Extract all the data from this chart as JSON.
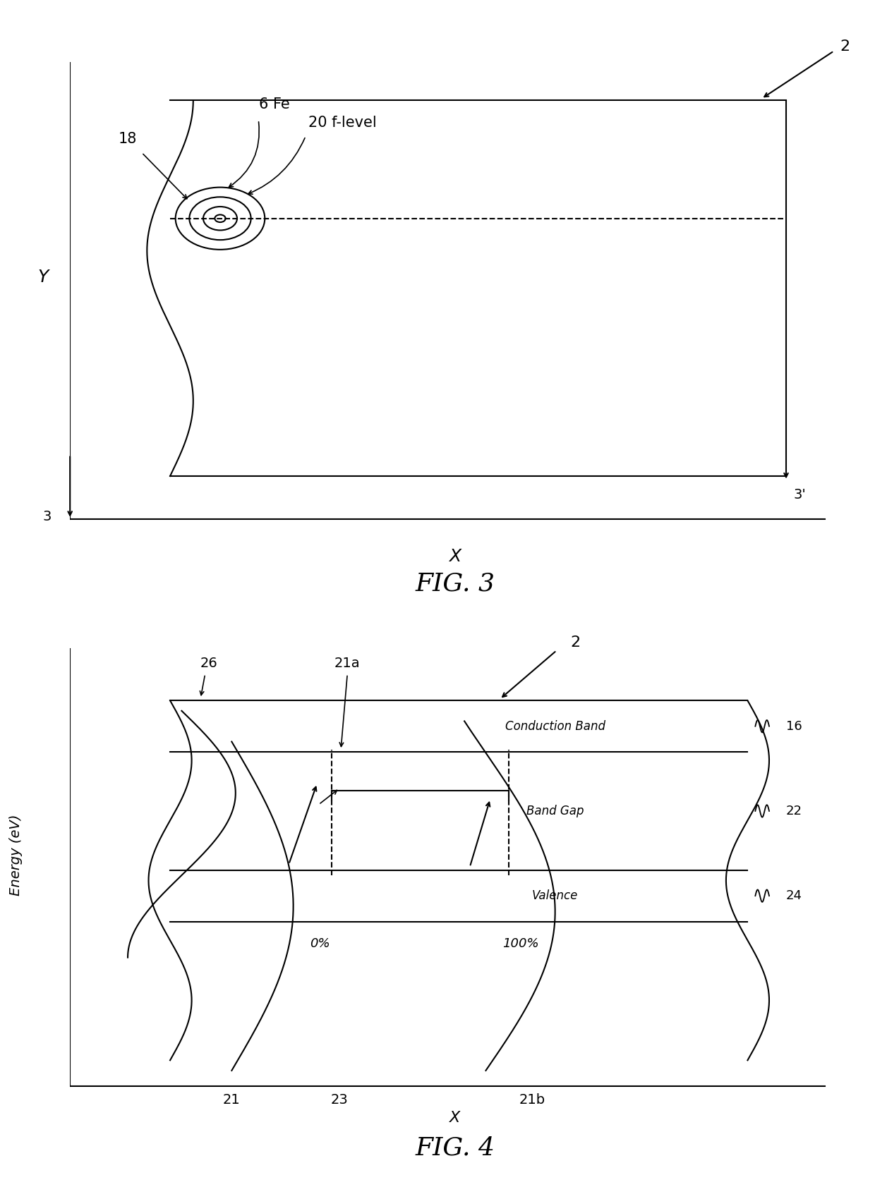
{
  "fig_width": 12.4,
  "fig_height": 17.0,
  "bg_color": "#ffffff",
  "line_color": "#000000",
  "fig3_title": "FIG. 3",
  "fig4_title": "FIG. 4",
  "fig3_labels": {
    "Y": "Y",
    "X": "X",
    "num_2": "2",
    "num_3": "3",
    "num_3p": "3'",
    "num_6Fe": "6 Fe",
    "num_18": "18",
    "num_20": "20 f-level"
  },
  "fig4_labels": {
    "energy": "Energy (eV)",
    "X": "X",
    "num_2": "2",
    "num_16": "16",
    "num_21": "21",
    "num_21a": "21a",
    "num_21b": "21b",
    "num_22": "22",
    "num_23": "23",
    "num_24": "24",
    "num_26": "26",
    "conduction": "Conduction Band",
    "bandgap": "Band Gap",
    "valence": "Valence",
    "pct0": "0%",
    "pct100": "100%"
  }
}
